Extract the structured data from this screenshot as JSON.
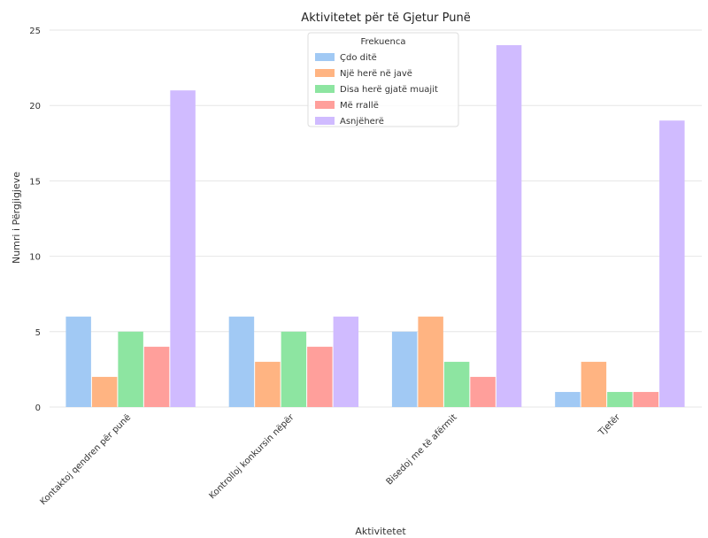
{
  "chart_data": {
    "type": "bar",
    "title": "Aktivitetet për të Gjetur Punë",
    "xlabel": "Aktivitetet",
    "ylabel": "Numri i Përgjigjeve",
    "categories": [
      "Kontaktoj qendren për punë",
      "Kontrolloj konkursin nëpër",
      "Bisedoj me të afërmit",
      "Tjetër"
    ],
    "ylim": [
      0,
      25
    ],
    "yticks": [
      0,
      5,
      10,
      15,
      20,
      25
    ],
    "grid": "horizontal",
    "legend": {
      "title": "Frekuenca",
      "placement": "top-center"
    },
    "series": [
      {
        "name": "Çdo ditë",
        "color": "#a1c9f4",
        "values": [
          6,
          6,
          5,
          1
        ]
      },
      {
        "name": "Një herë në javë",
        "color": "#ffb482",
        "values": [
          2,
          3,
          6,
          3
        ]
      },
      {
        "name": "Disa herë gjatë muajit",
        "color": "#8de5a1",
        "values": [
          5,
          5,
          3,
          1
        ]
      },
      {
        "name": "Më rrallë",
        "color": "#ff9f9b",
        "values": [
          4,
          4,
          2,
          1
        ]
      },
      {
        "name": "Asnjëherë",
        "color": "#d0bbff",
        "values": [
          21,
          6,
          24,
          19
        ]
      }
    ]
  }
}
